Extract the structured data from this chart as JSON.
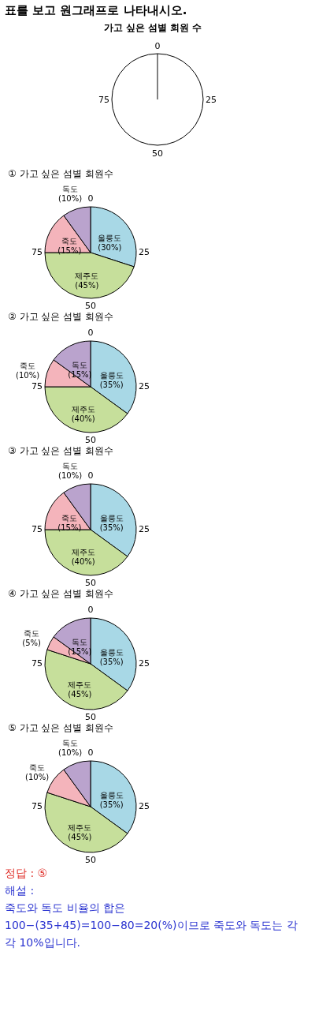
{
  "chart_data": [
    {
      "type": "other",
      "title": "가고 싶은 섬별 회원 수",
      "annotations": [
        "표를 보고 원그래프로 나타내시오.",
        "0",
        "25",
        "50",
        "75"
      ]
    },
    {
      "type": "pie",
      "title": "①  가고 싶은 섬별 회원수",
      "categories": [
        "울릉도",
        "제주도",
        "죽도",
        "독도"
      ],
      "values": [
        30,
        45,
        15,
        10
      ],
      "value_labels": [
        "(30%)",
        "(45%)",
        "(15%)",
        "(10%)"
      ],
      "colors": [
        "#a8d8e6",
        "#c6df9b",
        "#f4b4bb",
        "#baa3cd"
      ],
      "annotations": [
        "0",
        "25",
        "50",
        "75"
      ]
    },
    {
      "type": "pie",
      "title": "②  가고 싶은 섬별 회원수",
      "categories": [
        "울릉도",
        "제주도",
        "죽도",
        "독도"
      ],
      "values": [
        35,
        40,
        10,
        15
      ],
      "value_labels": [
        "(35%)",
        "(40%)",
        "(10%)",
        "(15%)"
      ],
      "colors": [
        "#a8d8e6",
        "#c6df9b",
        "#f4b4bb",
        "#baa3cd"
      ],
      "annotations": [
        "0",
        "25",
        "50",
        "75"
      ]
    },
    {
      "type": "pie",
      "title": "③  가고 싶은 섬별 회원수",
      "categories": [
        "울릉도",
        "제주도",
        "죽도",
        "독도"
      ],
      "values": [
        35,
        40,
        15,
        10
      ],
      "value_labels": [
        "(35%)",
        "(40%)",
        "(15%)",
        "(10%)"
      ],
      "colors": [
        "#a8d8e6",
        "#c6df9b",
        "#f4b4bb",
        "#baa3cd"
      ],
      "annotations": [
        "0",
        "25",
        "50",
        "75"
      ]
    },
    {
      "type": "pie",
      "title": "④  가고 싶은 섬별 회원수",
      "categories": [
        "울릉도",
        "제주도",
        "죽도",
        "독도"
      ],
      "values": [
        35,
        45,
        5,
        15
      ],
      "value_labels": [
        "(35%)",
        "(45%)",
        "(5%)",
        "(15%)"
      ],
      "colors": [
        "#a8d8e6",
        "#c6df9b",
        "#f4b4bb",
        "#baa3cd"
      ],
      "annotations": [
        "0",
        "25",
        "50",
        "75"
      ]
    },
    {
      "type": "pie",
      "title": "⑤  가고 싶은 섬별 회원수",
      "categories": [
        "울릉도",
        "제주도",
        "죽도",
        "독도"
      ],
      "values": [
        35,
        45,
        10,
        10
      ],
      "value_labels": [
        "(35%)",
        "(45%)",
        "(10%)",
        "(10%)"
      ],
      "colors": [
        "#a8d8e6",
        "#c6df9b",
        "#f4b4bb",
        "#baa3cd"
      ],
      "annotations": [
        "0",
        "25",
        "50",
        "75"
      ]
    },
    {
      "type": "other",
      "annotations": [
        "정답 : ⑤",
        "해설 :",
        "죽도와 독도 비율의 합은 100−(35+45)=100−80=20(%)이므로 죽도와 독도는 각각 10%입니다."
      ]
    }
  ]
}
